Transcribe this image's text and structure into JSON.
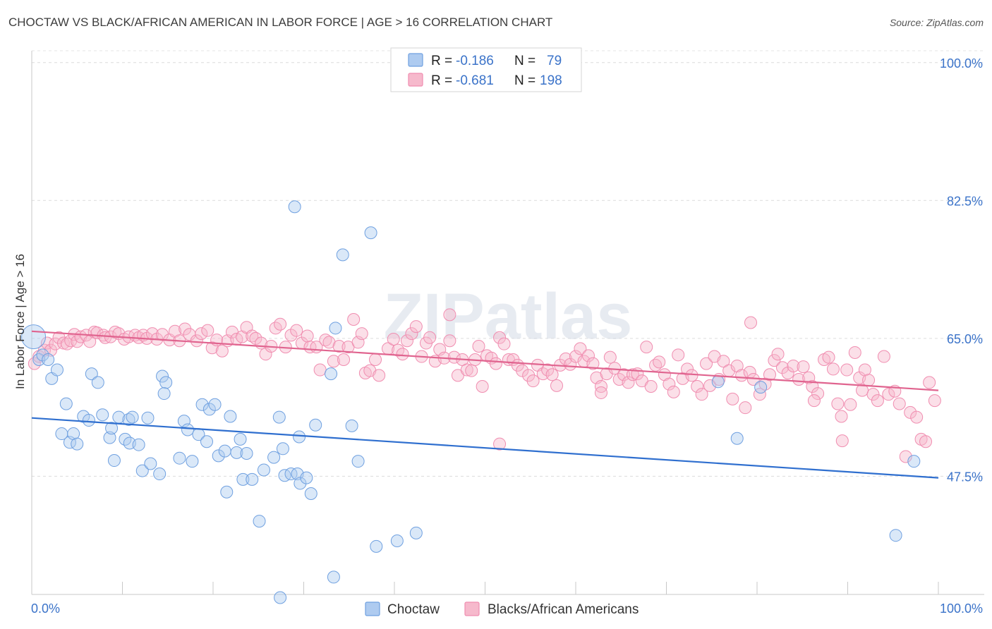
{
  "header": {
    "title": "CHOCTAW VS BLACK/AFRICAN AMERICAN IN LABOR FORCE | AGE > 16 CORRELATION CHART",
    "source": "Source: ZipAtlas.com"
  },
  "watermark": "ZIPatlas",
  "legend_top": [
    {
      "r_label": "R =",
      "r_value": "-0.186",
      "n_label": "N =",
      "n_value": "79",
      "color": "#aecbf0"
    },
    {
      "r_label": "R =",
      "r_value": "-0.681",
      "n_label": "N =",
      "n_value": "198",
      "color": "#f6b9cc"
    }
  ],
  "colors": {
    "choctaw": "#6fa0e0",
    "black": "#f08db0",
    "choctaw_line": "#2f6fcf",
    "black_line": "#e0648f",
    "axis_text": "#3b73c9"
  },
  "chart_data": {
    "type": "scatter",
    "title": "CHOCTAW VS BLACK/AFRICAN AMERICAN IN LABOR FORCE | AGE > 16 CORRELATION CHART",
    "xlabel": "",
    "ylabel": "In Labor Force | Age > 16",
    "xlim": [
      0,
      100
    ],
    "ylim": [
      32.5,
      101.5
    ],
    "x_tick_labels": [
      "0.0%",
      "100.0%"
    ],
    "y_ticks": [
      47.5,
      65.0,
      82.5,
      100.0
    ],
    "y_tick_labels": [
      "47.5%",
      "65.0%",
      "82.5%",
      "100.0%"
    ],
    "grid": true,
    "legend": "bottom-center",
    "series": [
      {
        "name": "Choctaw",
        "trend": [
          [
            0,
            54.9
          ],
          [
            100,
            47.3
          ]
        ],
        "points": [
          [
            0.2,
            65.2
          ],
          [
            0.8,
            62.3
          ],
          [
            1.2,
            62.9
          ],
          [
            1.8,
            62.3
          ],
          [
            2.2,
            59.9
          ],
          [
            2.8,
            61.0
          ],
          [
            3.8,
            56.7
          ],
          [
            3.3,
            52.9
          ],
          [
            4.2,
            51.8
          ],
          [
            4.6,
            52.9
          ],
          [
            5.0,
            51.6
          ],
          [
            5.7,
            55.1
          ],
          [
            6.3,
            54.6
          ],
          [
            6.6,
            60.5
          ],
          [
            7.3,
            59.4
          ],
          [
            7.8,
            55.3
          ],
          [
            8.6,
            52.4
          ],
          [
            8.8,
            53.6
          ],
          [
            9.1,
            49.5
          ],
          [
            9.6,
            55.0
          ],
          [
            10.3,
            52.2
          ],
          [
            10.8,
            51.7
          ],
          [
            10.7,
            54.7
          ],
          [
            11.1,
            55.0
          ],
          [
            11.8,
            51.5
          ],
          [
            12.2,
            48.2
          ],
          [
            12.8,
            54.9
          ],
          [
            13.1,
            49.1
          ],
          [
            14.4,
            60.2
          ],
          [
            14.8,
            59.4
          ],
          [
            14.6,
            58.0
          ],
          [
            14.1,
            47.8
          ],
          [
            16.3,
            49.8
          ],
          [
            16.8,
            54.5
          ],
          [
            17.2,
            53.4
          ],
          [
            17.7,
            49.4
          ],
          [
            18.4,
            52.8
          ],
          [
            18.8,
            56.6
          ],
          [
            19.3,
            51.9
          ],
          [
            19.6,
            56.0
          ],
          [
            20.2,
            56.6
          ],
          [
            20.6,
            50.1
          ],
          [
            21.3,
            50.7
          ],
          [
            21.5,
            45.5
          ],
          [
            21.9,
            55.1
          ],
          [
            22.6,
            50.5
          ],
          [
            23.0,
            52.2
          ],
          [
            23.3,
            47.1
          ],
          [
            23.7,
            50.4
          ],
          [
            24.3,
            47.1
          ],
          [
            25.1,
            41.8
          ],
          [
            25.6,
            48.3
          ],
          [
            26.7,
            49.9
          ],
          [
            27.3,
            55.0
          ],
          [
            27.7,
            51.0
          ],
          [
            27.4,
            32.1
          ],
          [
            27.9,
            47.6
          ],
          [
            28.6,
            47.8
          ],
          [
            29.3,
            47.8
          ],
          [
            29.6,
            46.6
          ],
          [
            29.0,
            81.7
          ],
          [
            30.3,
            47.3
          ],
          [
            29.5,
            52.5
          ],
          [
            30.8,
            45.3
          ],
          [
            31.3,
            54.0
          ],
          [
            33.0,
            60.5
          ],
          [
            33.5,
            66.3
          ],
          [
            33.3,
            34.7
          ],
          [
            34.3,
            75.6
          ],
          [
            35.3,
            53.9
          ],
          [
            36.0,
            49.4
          ],
          [
            37.4,
            78.4
          ],
          [
            38.0,
            38.6
          ],
          [
            40.3,
            39.3
          ],
          [
            42.4,
            40.3
          ],
          [
            75.7,
            59.5
          ],
          [
            77.8,
            52.3
          ],
          [
            80.4,
            58.8
          ],
          [
            95.3,
            40.0
          ],
          [
            97.3,
            49.4
          ]
        ]
      },
      {
        "name": "Blacks/African Americans",
        "trend": [
          [
            0,
            65.9
          ],
          [
            100,
            58.4
          ]
        ],
        "points": [
          [
            0.3,
            61.8
          ],
          [
            0.8,
            62.7
          ],
          [
            1.4,
            63.5
          ],
          [
            1.7,
            64.4
          ],
          [
            2.1,
            63.5
          ],
          [
            2.6,
            64.3
          ],
          [
            3.0,
            65.1
          ],
          [
            3.5,
            64.4
          ],
          [
            3.9,
            64.3
          ],
          [
            4.3,
            64.7
          ],
          [
            4.7,
            65.5
          ],
          [
            5.0,
            64.6
          ],
          [
            5.4,
            65.2
          ],
          [
            6.0,
            65.4
          ],
          [
            6.4,
            64.6
          ],
          [
            6.9,
            65.8
          ],
          [
            7.2,
            65.7
          ],
          [
            7.9,
            65.4
          ],
          [
            8.1,
            65.1
          ],
          [
            8.7,
            65.2
          ],
          [
            9.2,
            65.8
          ],
          [
            9.6,
            65.6
          ],
          [
            10.2,
            64.9
          ],
          [
            10.7,
            65.2
          ],
          [
            11.4,
            65.4
          ],
          [
            11.8,
            65.1
          ],
          [
            12.3,
            65.4
          ],
          [
            12.7,
            65.0
          ],
          [
            13.3,
            65.6
          ],
          [
            13.8,
            64.9
          ],
          [
            14.4,
            65.5
          ],
          [
            15.2,
            64.8
          ],
          [
            15.8,
            65.9
          ],
          [
            16.3,
            64.7
          ],
          [
            16.9,
            66.2
          ],
          [
            17.4,
            65.5
          ],
          [
            18.2,
            64.7
          ],
          [
            18.7,
            65.6
          ],
          [
            19.4,
            66.0
          ],
          [
            19.9,
            63.8
          ],
          [
            20.4,
            64.8
          ],
          [
            21.0,
            63.4
          ],
          [
            21.6,
            64.7
          ],
          [
            22.1,
            65.8
          ],
          [
            22.6,
            64.9
          ],
          [
            23.2,
            65.2
          ],
          [
            23.7,
            66.4
          ],
          [
            24.3,
            65.3
          ],
          [
            24.7,
            65.0
          ],
          [
            25.3,
            64.4
          ],
          [
            25.8,
            63.0
          ],
          [
            26.4,
            64.0
          ],
          [
            26.9,
            66.3
          ],
          [
            27.4,
            66.8
          ],
          [
            28.0,
            63.9
          ],
          [
            28.6,
            65.4
          ],
          [
            29.2,
            66.0
          ],
          [
            29.8,
            64.4
          ],
          [
            30.4,
            65.3
          ],
          [
            30.7,
            63.9
          ],
          [
            31.4,
            63.9
          ],
          [
            31.8,
            61.0
          ],
          [
            32.4,
            64.8
          ],
          [
            32.8,
            64.5
          ],
          [
            33.3,
            62.1
          ],
          [
            33.9,
            64.0
          ],
          [
            34.4,
            62.3
          ],
          [
            34.9,
            63.9
          ],
          [
            35.5,
            67.4
          ],
          [
            36.0,
            64.5
          ],
          [
            36.4,
            65.6
          ],
          [
            36.8,
            60.6
          ],
          [
            37.3,
            60.9
          ],
          [
            37.9,
            62.3
          ],
          [
            38.3,
            60.3
          ],
          [
            39.3,
            63.7
          ],
          [
            39.9,
            64.9
          ],
          [
            40.4,
            63.5
          ],
          [
            40.9,
            63.0
          ],
          [
            41.4,
            64.7
          ],
          [
            41.9,
            65.6
          ],
          [
            42.4,
            66.5
          ],
          [
            43.0,
            62.7
          ],
          [
            43.5,
            64.4
          ],
          [
            43.9,
            65.1
          ],
          [
            44.5,
            62.1
          ],
          [
            45.0,
            63.6
          ],
          [
            45.5,
            62.5
          ],
          [
            46.1,
            64.7
          ],
          [
            46.6,
            62.6
          ],
          [
            46.1,
            68.0
          ],
          [
            47.0,
            60.3
          ],
          [
            47.5,
            62.3
          ],
          [
            48.0,
            61.0
          ],
          [
            48.5,
            60.9
          ],
          [
            48.9,
            62.3
          ],
          [
            49.3,
            64.0
          ],
          [
            49.7,
            58.9
          ],
          [
            50.2,
            62.8
          ],
          [
            50.7,
            62.5
          ],
          [
            51.2,
            61.8
          ],
          [
            51.6,
            65.1
          ],
          [
            52.1,
            64.3
          ],
          [
            51.6,
            51.6
          ],
          [
            52.6,
            62.3
          ],
          [
            53.1,
            62.3
          ],
          [
            53.6,
            61.6
          ],
          [
            54.1,
            60.9
          ],
          [
            54.8,
            60.3
          ],
          [
            55.3,
            59.6
          ],
          [
            55.8,
            61.6
          ],
          [
            56.4,
            60.5
          ],
          [
            56.9,
            61.0
          ],
          [
            57.4,
            60.4
          ],
          [
            57.9,
            59.0
          ],
          [
            58.3,
            61.6
          ],
          [
            58.9,
            62.4
          ],
          [
            59.4,
            61.7
          ],
          [
            60.0,
            62.7
          ],
          [
            60.5,
            63.7
          ],
          [
            60.9,
            62.1
          ],
          [
            61.4,
            62.8
          ],
          [
            61.9,
            61.8
          ],
          [
            62.3,
            60.0
          ],
          [
            62.8,
            58.9
          ],
          [
            62.8,
            58.1
          ],
          [
            63.4,
            60.5
          ],
          [
            63.8,
            62.6
          ],
          [
            64.3,
            61.2
          ],
          [
            64.8,
            59.8
          ],
          [
            65.3,
            60.4
          ],
          [
            65.8,
            59.4
          ],
          [
            66.3,
            60.4
          ],
          [
            66.8,
            60.5
          ],
          [
            67.3,
            59.6
          ],
          [
            67.8,
            63.9
          ],
          [
            68.3,
            58.9
          ],
          [
            68.8,
            61.6
          ],
          [
            69.2,
            62.0
          ],
          [
            69.8,
            60.4
          ],
          [
            70.3,
            59.2
          ],
          [
            70.8,
            58.2
          ],
          [
            71.3,
            62.9
          ],
          [
            71.8,
            59.9
          ],
          [
            72.3,
            61.1
          ],
          [
            72.8,
            60.3
          ],
          [
            73.4,
            58.9
          ],
          [
            73.9,
            57.9
          ],
          [
            74.4,
            61.8
          ],
          [
            74.8,
            59.0
          ],
          [
            75.3,
            62.7
          ],
          [
            75.8,
            59.8
          ],
          [
            76.3,
            62.1
          ],
          [
            76.9,
            60.9
          ],
          [
            77.3,
            57.3
          ],
          [
            77.8,
            61.5
          ],
          [
            78.3,
            60.3
          ],
          [
            78.7,
            56.2
          ],
          [
            79.2,
            60.7
          ],
          [
            79.6,
            59.8
          ],
          [
            79.3,
            67.0
          ],
          [
            80.3,
            57.9
          ],
          [
            80.9,
            59.2
          ],
          [
            81.4,
            60.4
          ],
          [
            81.9,
            62.2
          ],
          [
            82.3,
            63.0
          ],
          [
            82.8,
            61.3
          ],
          [
            83.4,
            60.6
          ],
          [
            84.0,
            61.5
          ],
          [
            84.6,
            59.8
          ],
          [
            85.1,
            61.4
          ],
          [
            85.7,
            60.0
          ],
          [
            86.1,
            58.9
          ],
          [
            86.7,
            58.0
          ],
          [
            87.4,
            62.3
          ],
          [
            87.9,
            62.6
          ],
          [
            88.4,
            61.1
          ],
          [
            88.9,
            56.7
          ],
          [
            89.4,
            52.0
          ],
          [
            89.9,
            61.0
          ],
          [
            90.3,
            56.6
          ],
          [
            90.8,
            63.2
          ],
          [
            91.3,
            60.0
          ],
          [
            91.9,
            61.0
          ],
          [
            92.3,
            59.7
          ],
          [
            92.8,
            57.9
          ],
          [
            93.3,
            57.1
          ],
          [
            94.0,
            62.7
          ],
          [
            94.5,
            57.9
          ],
          [
            95.2,
            58.3
          ],
          [
            95.7,
            56.7
          ],
          [
            96.4,
            50.0
          ],
          [
            96.9,
            55.6
          ],
          [
            97.6,
            55.0
          ],
          [
            98.1,
            52.2
          ],
          [
            98.6,
            51.9
          ],
          [
            99.0,
            59.4
          ],
          [
            99.6,
            57.1
          ],
          [
            86.3,
            57.1
          ],
          [
            89.3,
            55.1
          ],
          [
            91.6,
            58.4
          ]
        ]
      }
    ]
  },
  "legend_bottom": [
    {
      "label": "Choctaw",
      "color": "#aecbf0"
    },
    {
      "label": "Blacks/African Americans",
      "color": "#f6b9cc"
    }
  ]
}
